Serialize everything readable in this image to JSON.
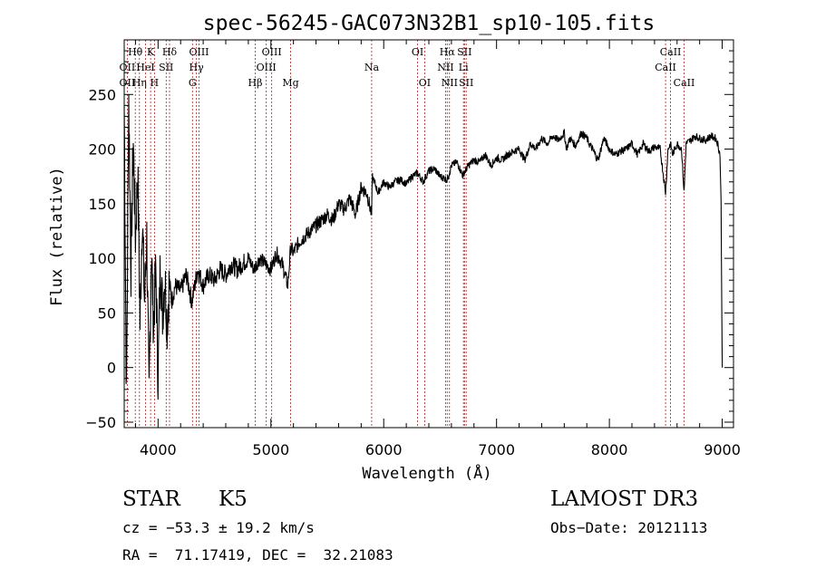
{
  "chart_data": {
    "type": "line",
    "title": "spec-56245-GAC073N32B1_sp10-105.fits",
    "xlabel": "Wavelength (Å)",
    "ylabel": "Flux (relative)",
    "xlim": [
      3700,
      9100
    ],
    "ylim": [
      -55,
      300
    ],
    "xticks": [
      4000,
      5000,
      6000,
      7000,
      8000,
      9000
    ],
    "yticks": [
      -50,
      0,
      50,
      100,
      150,
      200,
      250
    ],
    "series": [
      {
        "name": "flux",
        "x": [
          3700,
          3720,
          3740,
          3760,
          3780,
          3800,
          3820,
          3840,
          3860,
          3880,
          3900,
          3920,
          3940,
          3960,
          3980,
          4000,
          4020,
          4040,
          4060,
          4080,
          4100,
          4120,
          4150,
          4200,
          4250,
          4300,
          4350,
          4400,
          4450,
          4500,
          4550,
          4600,
          4650,
          4700,
          4750,
          4800,
          4850,
          4900,
          4950,
          5000,
          5050,
          5100,
          5150,
          5175,
          5200,
          5250,
          5300,
          5350,
          5400,
          5450,
          5500,
          5550,
          5600,
          5650,
          5700,
          5750,
          5800,
          5850,
          5893,
          5900,
          5950,
          6000,
          6050,
          6100,
          6150,
          6200,
          6250,
          6300,
          6350,
          6400,
          6450,
          6500,
          6563,
          6600,
          6650,
          6700,
          6750,
          6800,
          6850,
          6900,
          6950,
          7000,
          7050,
          7100,
          7150,
          7200,
          7250,
          7300,
          7350,
          7400,
          7450,
          7500,
          7550,
          7600,
          7620,
          7650,
          7700,
          7750,
          7800,
          7820,
          7850,
          7900,
          7950,
          8000,
          8050,
          8100,
          8150,
          8200,
          8250,
          8300,
          8350,
          8400,
          8450,
          8498,
          8520,
          8542,
          8560,
          8600,
          8640,
          8662,
          8680,
          8720,
          8760,
          8800,
          8850,
          8900,
          8940,
          8960,
          8980,
          8990,
          9000
        ],
        "y": [
          240,
          -30,
          250,
          90,
          210,
          120,
          180,
          40,
          140,
          60,
          120,
          -30,
          110,
          40,
          90,
          -10,
          100,
          50,
          85,
          40,
          80,
          60,
          75,
          70,
          85,
          60,
          90,
          75,
          85,
          80,
          90,
          85,
          95,
          90,
          95,
          100,
          90,
          100,
          95,
          90,
          105,
          95,
          75,
          110,
          105,
          115,
          120,
          125,
          130,
          135,
          140,
          135,
          150,
          145,
          155,
          140,
          165,
          160,
          140,
          175,
          160,
          170,
          165,
          170,
          172,
          168,
          175,
          178,
          170,
          180,
          182,
          175,
          172,
          185,
          188,
          176,
          185,
          190,
          188,
          195,
          185,
          192,
          190,
          195,
          198,
          200,
          190,
          205,
          200,
          210,
          205,
          212,
          208,
          215,
          200,
          210,
          203,
          215,
          210,
          205,
          200,
          190,
          210,
          200,
          195,
          198,
          200,
          205,
          195,
          205,
          198,
          202,
          200,
          160,
          200,
          205,
          195,
          205,
          200,
          160,
          205,
          208,
          212,
          210,
          208,
          212,
          210,
          205,
          195,
          150,
          0
        ]
      }
    ],
    "line_labels": [
      {
        "name": "Hθ",
        "wl": 3798,
        "row": 0
      },
      {
        "name": "OII",
        "wl": 3727,
        "row": 1
      },
      {
        "name": "OII",
        "wl": 3727,
        "row": 2
      },
      {
        "name": "Hη",
        "wl": 3835,
        "row": 2
      },
      {
        "name": "K",
        "wl": 3934,
        "row": 0
      },
      {
        "name": "HeI",
        "wl": 3889,
        "row": 1
      },
      {
        "name": "H",
        "wl": 3968,
        "row": 2
      },
      {
        "name": "Hδ",
        "wl": 4102,
        "row": 0
      },
      {
        "name": "SII",
        "wl": 4072,
        "row": 1
      },
      {
        "name": "OIII",
        "wl": 4363,
        "row": 0
      },
      {
        "name": "Hγ",
        "wl": 4340,
        "row": 1
      },
      {
        "name": "G",
        "wl": 4305,
        "row": 2
      },
      {
        "name": "OIII",
        "wl": 5007,
        "row": 0
      },
      {
        "name": "OIII",
        "wl": 4959,
        "row": 1
      },
      {
        "name": "Hβ",
        "wl": 4861,
        "row": 2
      },
      {
        "name": "Mg",
        "wl": 5175,
        "row": 2
      },
      {
        "name": "Na",
        "wl": 5893,
        "row": 1
      },
      {
        "name": "OI",
        "wl": 6300,
        "row": 0
      },
      {
        "name": "OI",
        "wl": 6363,
        "row": 2
      },
      {
        "name": "Hα",
        "wl": 6563,
        "row": 0
      },
      {
        "name": "NII",
        "wl": 6548,
        "row": 1
      },
      {
        "name": "NII",
        "wl": 6583,
        "row": 2
      },
      {
        "name": "SII",
        "wl": 6716,
        "row": 0
      },
      {
        "name": "Li",
        "wl": 6707,
        "row": 1
      },
      {
        "name": "SII",
        "wl": 6731,
        "row": 2
      },
      {
        "name": "CaII",
        "wl": 8542,
        "row": 0
      },
      {
        "name": "CaII",
        "wl": 8498,
        "row": 1
      },
      {
        "name": "CaII",
        "wl": 8662,
        "row": 2
      }
    ],
    "line_positions": [
      3727,
      3798,
      3835,
      3889,
      3934,
      3968,
      4072,
      4102,
      4305,
      4340,
      4363,
      4861,
      4959,
      5007,
      5175,
      5893,
      6300,
      6363,
      6548,
      6563,
      6583,
      6707,
      6716,
      6731,
      8498,
      8542,
      8662
    ]
  },
  "info": {
    "object_class": "STAR",
    "subclass": "K5",
    "survey": "LAMOST DR3",
    "cz": "cz = −53.3 ± 19.2 km/s",
    "obs_date": "Obs−Date: 20121113",
    "radec": "RA =  71.17419, DEC =  32.21083"
  },
  "colors": {
    "axis": "#000000",
    "line": "#000000",
    "marker": "#b02020",
    "background": "#ffffff"
  }
}
